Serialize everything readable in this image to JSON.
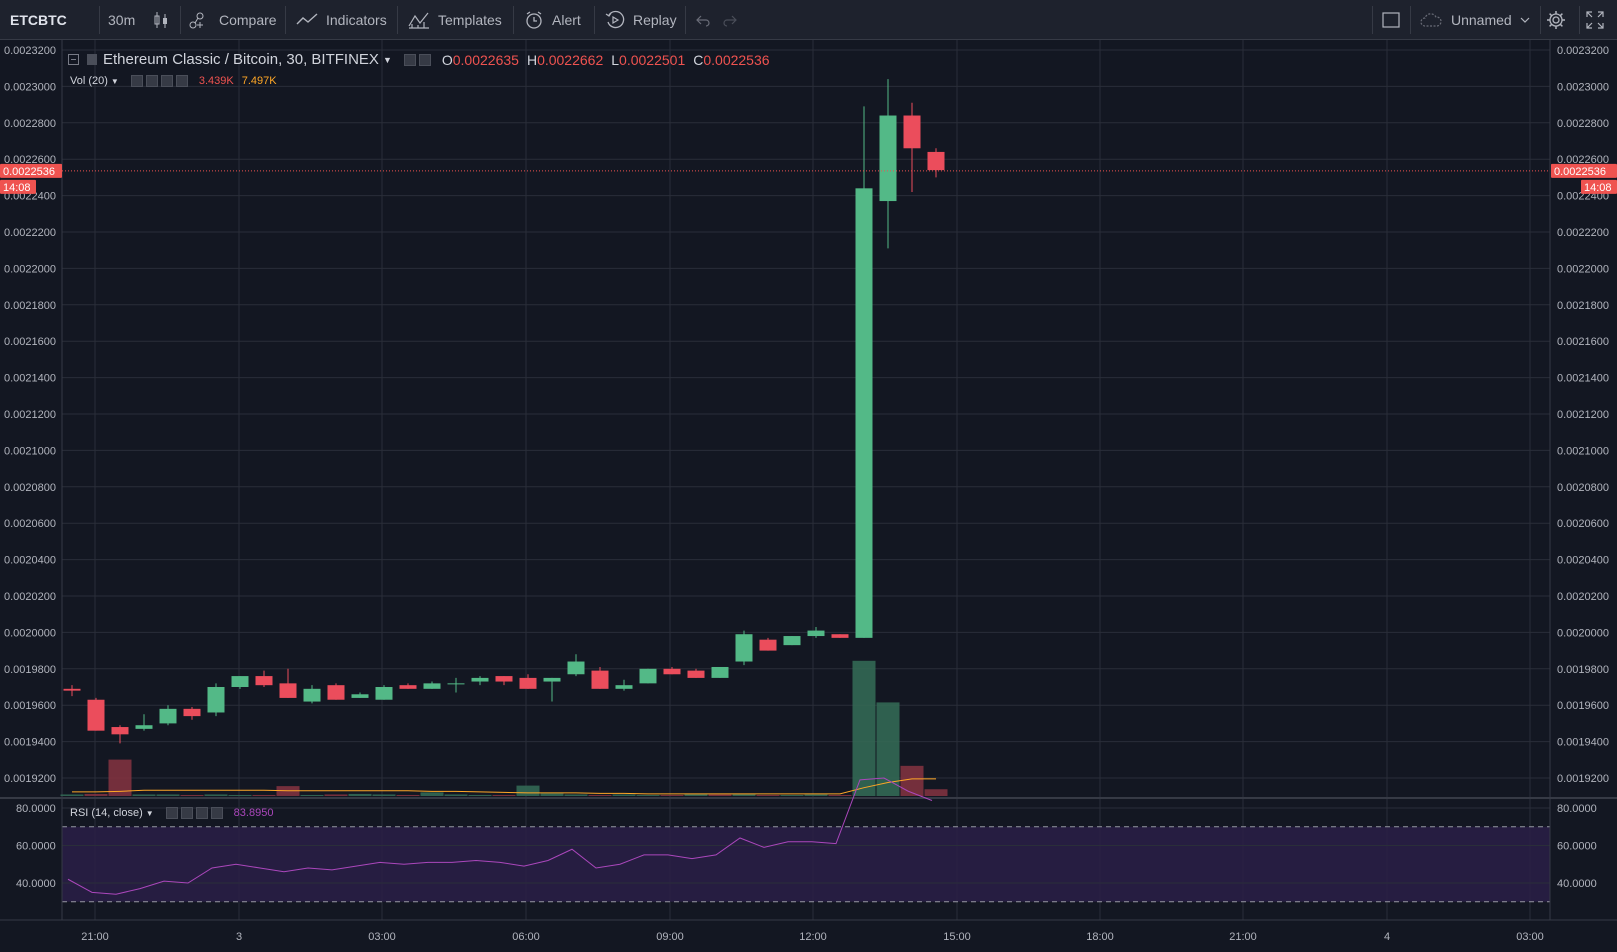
{
  "toolbar": {
    "symbol": "ETCBTC",
    "interval": "30m",
    "compare": "Compare",
    "indicators": "Indicators",
    "templates": "Templates",
    "alert": "Alert",
    "replay": "Replay",
    "layout_name": "Unnamed",
    "icons": [
      "candles-icon",
      "compare-icon",
      "indicators-icon",
      "templates-icon",
      "alert-icon",
      "replay-icon",
      "undo-icon",
      "redo-icon",
      "layout-icon",
      "cloud-icon",
      "chevron-down-icon",
      "gear-icon",
      "fullscreen-icon"
    ]
  },
  "legend": {
    "title": "Ethereum Classic / Bitcoin, 30, BITFINEX",
    "open_key": "O",
    "open": "0.0022635",
    "high_key": "H",
    "high": "0.0022662",
    "low_key": "L",
    "low": "0.0022501",
    "close_key": "C",
    "close": "0.0022536"
  },
  "volume_legend": {
    "label": "Vol (20)",
    "value1": "3.439K",
    "value2": "7.497K"
  },
  "rsi_legend": {
    "label": "RSI (14, close)",
    "value": "83.8950"
  },
  "last_price": {
    "value": "0.0022536",
    "countdown": "14:08"
  },
  "colors": {
    "background": "#131722",
    "grid": "#2a2e39",
    "up": "#53b987",
    "down": "#eb4d5c",
    "volume_up": "#336854",
    "volume_down": "#7f323f",
    "vol_ma": "#ffa726",
    "rsi_line": "#ab47bc",
    "rsi_band": "#2a1f47",
    "last_price": "#ef5350"
  },
  "chart_data": {
    "type": "candlestick",
    "price_axis": {
      "ylim": [
        0.00191,
        0.00232
      ],
      "ticks": [
        "0.0023200",
        "0.0023000",
        "0.0022800",
        "0.0022600",
        "0.0022400",
        "0.0022200",
        "0.0022000",
        "0.0021800",
        "0.0021600",
        "0.0021400",
        "0.0021200",
        "0.0021000",
        "0.0020800",
        "0.0020600",
        "0.0020400",
        "0.0020200",
        "0.0020000",
        "0.0019800",
        "0.0019600",
        "0.0019400",
        "0.0019200"
      ]
    },
    "time_axis": {
      "ticks": [
        "21:00",
        "3",
        "03:00",
        "06:00",
        "09:00",
        "12:00",
        "15:00",
        "18:00",
        "21:00",
        "4",
        "03:00"
      ]
    },
    "candles": [
      {
        "o": 0.001969,
        "h": 0.001971,
        "l": 0.001965,
        "c": 0.001968
      },
      {
        "o": 0.001963,
        "h": 0.001964,
        "l": 0.001946,
        "c": 0.001946
      },
      {
        "o": 0.001948,
        "h": 0.001949,
        "l": 0.001939,
        "c": 0.001944
      },
      {
        "o": 0.001947,
        "h": 0.001955,
        "l": 0.001946,
        "c": 0.001949
      },
      {
        "o": 0.00195,
        "h": 0.00196,
        "l": 0.001949,
        "c": 0.001958
      },
      {
        "o": 0.001958,
        "h": 0.001959,
        "l": 0.001952,
        "c": 0.001954
      },
      {
        "o": 0.001956,
        "h": 0.001972,
        "l": 0.001954,
        "c": 0.00197
      },
      {
        "o": 0.00197,
        "h": 0.001976,
        "l": 0.001969,
        "c": 0.001976
      },
      {
        "o": 0.001976,
        "h": 0.001979,
        "l": 0.00197,
        "c": 0.001971
      },
      {
        "o": 0.001972,
        "h": 0.00198,
        "l": 0.001964,
        "c": 0.001964
      },
      {
        "o": 0.001962,
        "h": 0.001971,
        "l": 0.001961,
        "c": 0.001969
      },
      {
        "o": 0.001971,
        "h": 0.001972,
        "l": 0.001963,
        "c": 0.001963
      },
      {
        "o": 0.001964,
        "h": 0.001967,
        "l": 0.001964,
        "c": 0.001966
      },
      {
        "o": 0.001963,
        "h": 0.001971,
        "l": 0.001963,
        "c": 0.00197
      },
      {
        "o": 0.001971,
        "h": 0.001972,
        "l": 0.001969,
        "c": 0.001969
      },
      {
        "o": 0.001969,
        "h": 0.001973,
        "l": 0.001969,
        "c": 0.001972
      },
      {
        "o": 0.001972,
        "h": 0.001975,
        "l": 0.001967,
        "c": 0.001972
      },
      {
        "o": 0.001973,
        "h": 0.001976,
        "l": 0.001971,
        "c": 0.001975
      },
      {
        "o": 0.001976,
        "h": 0.001976,
        "l": 0.001971,
        "c": 0.001973
      },
      {
        "o": 0.001975,
        "h": 0.001977,
        "l": 0.001969,
        "c": 0.001969
      },
      {
        "o": 0.001973,
        "h": 0.001975,
        "l": 0.001962,
        "c": 0.001975
      },
      {
        "o": 0.001977,
        "h": 0.001988,
        "l": 0.001976,
        "c": 0.001984
      },
      {
        "o": 0.001979,
        "h": 0.001981,
        "l": 0.001969,
        "c": 0.001969
      },
      {
        "o": 0.001969,
        "h": 0.001974,
        "l": 0.001968,
        "c": 0.001971
      },
      {
        "o": 0.001972,
        "h": 0.00198,
        "l": 0.001972,
        "c": 0.00198
      },
      {
        "o": 0.00198,
        "h": 0.001981,
        "l": 0.001977,
        "c": 0.001977
      },
      {
        "o": 0.001979,
        "h": 0.00198,
        "l": 0.001975,
        "c": 0.001975
      },
      {
        "o": 0.001975,
        "h": 0.001981,
        "l": 0.001975,
        "c": 0.001981
      },
      {
        "o": 0.001984,
        "h": 0.002001,
        "l": 0.001982,
        "c": 0.001999
      },
      {
        "o": 0.001996,
        "h": 0.001997,
        "l": 0.00199,
        "c": 0.00199
      },
      {
        "o": 0.001993,
        "h": 0.001998,
        "l": 0.001993,
        "c": 0.001998
      },
      {
        "o": 0.001998,
        "h": 0.002003,
        "l": 0.001997,
        "c": 0.002001
      },
      {
        "o": 0.001999,
        "h": 0.001999,
        "l": 0.001997,
        "c": 0.001997
      },
      {
        "o": 0.001997,
        "h": 0.002289,
        "l": 0.001997,
        "c": 0.002244
      },
      {
        "o": 0.002237,
        "h": 0.002304,
        "l": 0.002211,
        "c": 0.002284
      },
      {
        "o": 0.002284,
        "h": 0.002291,
        "l": 0.002242,
        "c": 0.002266
      },
      {
        "o": 0.002264,
        "h": 0.002266,
        "l": 0.00225,
        "c": 0.002254
      }
    ],
    "volume": [
      {
        "v": 0.3,
        "up": true
      },
      {
        "v": 0.4,
        "up": false
      },
      {
        "v": 7.0,
        "up": false
      },
      {
        "v": 0.3,
        "up": true
      },
      {
        "v": 0.3,
        "up": true
      },
      {
        "v": 0.2,
        "up": false
      },
      {
        "v": 0.3,
        "up": true
      },
      {
        "v": 0.2,
        "up": true
      },
      {
        "v": 0.2,
        "up": false
      },
      {
        "v": 1.9,
        "up": false
      },
      {
        "v": 0.2,
        "up": true
      },
      {
        "v": 0.3,
        "up": false
      },
      {
        "v": 0.4,
        "up": true
      },
      {
        "v": 0.3,
        "up": true
      },
      {
        "v": 0.2,
        "up": false
      },
      {
        "v": 0.7,
        "up": true
      },
      {
        "v": 0.3,
        "up": true
      },
      {
        "v": 0.2,
        "up": true
      },
      {
        "v": 0.2,
        "up": false
      },
      {
        "v": 2.0,
        "up": true
      },
      {
        "v": 0.5,
        "up": true
      },
      {
        "v": 0.3,
        "up": true
      },
      {
        "v": 0.2,
        "up": false
      },
      {
        "v": 0.3,
        "up": true
      },
      {
        "v": 0.2,
        "up": true
      },
      {
        "v": 0.2,
        "up": false
      },
      {
        "v": 0.4,
        "up": true
      },
      {
        "v": 0.3,
        "up": false
      },
      {
        "v": 0.4,
        "up": true
      },
      {
        "v": 0.2,
        "up": false
      },
      {
        "v": 0.2,
        "up": true
      },
      {
        "v": 0.3,
        "up": true
      },
      {
        "v": 0.2,
        "up": false
      },
      {
        "v": 26.0,
        "up": true
      },
      {
        "v": 18.0,
        "up": true
      },
      {
        "v": 5.8,
        "up": false
      },
      {
        "v": 1.3,
        "up": false
      }
    ],
    "volume_ma": [
      0.8,
      0.8,
      0.9,
      1.1,
      1.1,
      1.1,
      1.1,
      1.1,
      1.1,
      1.0,
      1.0,
      1.0,
      1.0,
      1.0,
      1.0,
      0.9,
      0.9,
      0.8,
      0.7,
      0.6,
      0.6,
      0.6,
      0.5,
      0.5,
      0.4,
      0.4,
      0.4,
      0.4,
      0.4,
      0.4,
      0.4,
      0.4,
      0.4,
      1.6,
      2.6,
      3.3,
      3.3
    ],
    "rsi": {
      "values": [
        42,
        35,
        34,
        37,
        41,
        40,
        48,
        50,
        48,
        46,
        48,
        47,
        49,
        51,
        50,
        51,
        51,
        52,
        51,
        49,
        52,
        58,
        48,
        50,
        55,
        55,
        53,
        55,
        64,
        59,
        62,
        62,
        61,
        95,
        96,
        89,
        84
      ],
      "ylim": [
        28,
        100
      ],
      "ticks": [
        "80.0000",
        "60.0000",
        "40.0000"
      ],
      "band": [
        30,
        70
      ]
    }
  }
}
